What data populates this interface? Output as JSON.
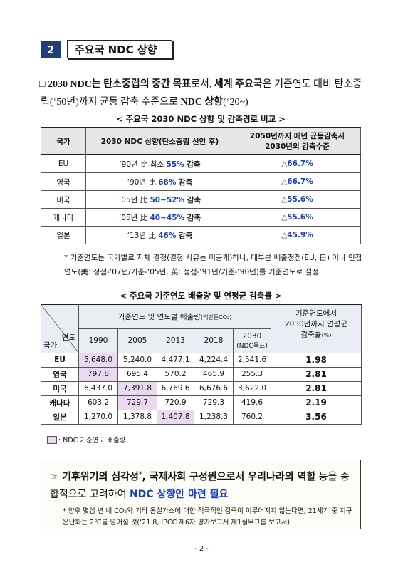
{
  "header": {
    "number": "2",
    "title": "주요국 NDC 상향"
  },
  "intro": {
    "bullet": "□",
    "parts": [
      "2030 NDC는",
      " ",
      "탄소중립의 중간 목표",
      "로서, ",
      "세계 주요국",
      "은 기준연도 대비 탄소중립(‘50년)까지 균등 감축 수준으로 ",
      "NDC 상향",
      "(‘20~)"
    ]
  },
  "table1": {
    "caption": "< 주요국 2030 NDC 상향 및 감축경로 비교 >",
    "headers": [
      "국가",
      "2030 NDC 상향(탄소중립 선언 후)",
      [
        "2050년까지 매년 균등감축시",
        "2030년의 감축수준"
      ]
    ],
    "rows": [
      {
        "country": "EU",
        "ndc": [
          "‘90년 比 최소 ",
          "55%",
          " 감축"
        ],
        "level": "△66.7%"
      },
      {
        "country": "영국",
        "ndc": [
          "‘90년 比 ",
          "68%",
          " 감축"
        ],
        "level": "△66.7%"
      },
      {
        "country": "미국",
        "ndc": [
          "‘05년 比 ",
          "50~52%",
          " 감축"
        ],
        "level": "△55.6%"
      },
      {
        "country": "캐나다",
        "ndc": [
          "‘05년 比 ",
          "40~45%",
          " 감축"
        ],
        "level": "△55.6%"
      },
      {
        "country": "일본",
        "ndc": [
          "‘13년 比 ",
          "46%",
          " 감축"
        ],
        "level": "△45.9%"
      }
    ]
  },
  "note1": "* 기준연도는 국가별로 자체 결정(결정 사유는 미공개)하나, 대부분 배출정점(EU, 日) 이나 인접 연도(美: 정점-‘07년/기준-‘05년, 英: 정점-‘91년/기준-‘90년)를 기준연도로 설정",
  "table2": {
    "caption": "< 주요국 기준연도 배출량 및 연평균 감축률 >",
    "corner": {
      "top": "연도",
      "bottom": "국가"
    },
    "group_header": {
      "text": "기준연도 및 연도별 배출량",
      "unit": "(백만톤CO₂)"
    },
    "years": [
      "1990",
      "2005",
      "2013",
      "2018",
      "2030"
    ],
    "year_note": "(NDC목표)",
    "rate_header": {
      "lines": [
        "기준연도에서",
        "2030년까지 연평균",
        "감축률"
      ],
      "unit": "(%)"
    },
    "rows": [
      {
        "country": "EU",
        "values": [
          "5,648.0",
          "5,240.0",
          "4,477.1",
          "4,224.4",
          "2,541.6"
        ],
        "rate": "1.98"
      },
      {
        "country": "영국",
        "values": [
          "797.8",
          "695.4",
          "570.2",
          "465.9",
          "255.3"
        ],
        "rate": "2.81"
      },
      {
        "country": "미국",
        "values": [
          "6,437.0",
          "7,391.8",
          "6,769.6",
          "6,676.6",
          "3,622.0"
        ],
        "rate": "2.81"
      },
      {
        "country": "캐나다",
        "values": [
          "603.2",
          "729.7",
          "720.9",
          "729.3",
          "419.6"
        ],
        "rate": "2.19"
      },
      {
        "country": "일본",
        "values": [
          "1,270.0",
          "1,378.8",
          "1,407.8",
          "1,238.3",
          "760.2"
        ],
        "rate": "3.56"
      }
    ]
  },
  "legend": ": NDC 기준연도 배출량",
  "box": {
    "pointer": "☞",
    "parts": [
      "기후위기의 심각성",
      "*",
      ", 국제사회 구성원으로서 우리나라의 역할",
      " 등을 종합적으로 고려하여 ",
      "NDC 상향안 마련 필요"
    ],
    "footnote": "* 향후 몇십 년 내 CO₂와 기타 온실가스에 대한 적극적인 감축이 이루어지지 않는다면, 21세기 중 지구온난화는 2℃를 넘어설 것(‘21.8, IPCC 제6차 평가보고서 제1실무그룹 보고서)"
  },
  "page_number": "- 2 -"
}
